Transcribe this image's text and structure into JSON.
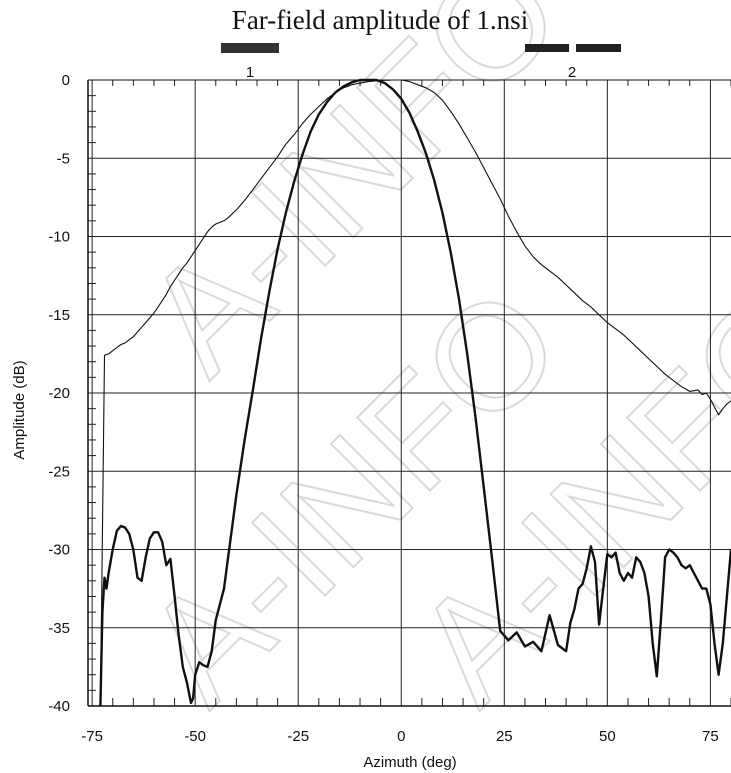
{
  "chart_data": {
    "type": "line",
    "title": "Far-field amplitude of 1.nsi",
    "xlabel": "Azimuth (deg)",
    "ylabel": "Amplitude (dB)",
    "xlim": [
      -76,
      80
    ],
    "ylim": [
      -40,
      0
    ],
    "xticks": [
      -75,
      -50,
      -25,
      0,
      25,
      50,
      75
    ],
    "yticks": [
      0,
      -5,
      -10,
      -15,
      -20,
      -25,
      -30,
      -35,
      -40
    ],
    "xtick_labels": [
      "-75",
      "-50",
      "-25",
      "0",
      "25",
      "50",
      "75"
    ],
    "ytick_labels": [
      "0",
      "-5",
      "-10",
      "-15",
      "-20",
      "-25",
      "-30",
      "-35",
      "-40"
    ],
    "grid": true,
    "legend": {
      "placement": "top",
      "entries": [
        {
          "label": "1",
          "style": "solid thick bar"
        },
        {
          "label": "2",
          "style": "dashed thick bar"
        }
      ]
    },
    "watermark": "A-INFO",
    "series": [
      {
        "id": "1",
        "style": "thick",
        "x": [
          -73,
          -72.5,
          -72,
          -71.5,
          -71,
          -70,
          -69,
          -68,
          -67,
          -66,
          -65,
          -64,
          -63,
          -62,
          -61,
          -60,
          -59,
          -58,
          -57,
          -56,
          -55,
          -54,
          -53,
          -52,
          -51,
          -50.5,
          -50,
          -49,
          -48,
          -47,
          -46,
          -45,
          -44,
          -43,
          -42,
          -41,
          -40,
          -38,
          -36,
          -34,
          -32,
          -30,
          -28,
          -26,
          -24,
          -22,
          -20,
          -18,
          -16,
          -14,
          -12,
          -10,
          -8,
          -6,
          -4,
          -2,
          0,
          2,
          4,
          6,
          8,
          10,
          12,
          14,
          16,
          18,
          20,
          22,
          24,
          26,
          28,
          30,
          32,
          34,
          36,
          38,
          40,
          41,
          42,
          43,
          44,
          45,
          46,
          47,
          48,
          49,
          50,
          51,
          52,
          53,
          54,
          55,
          56,
          57,
          58,
          59,
          60,
          61,
          62,
          63,
          64,
          65,
          66,
          67,
          68,
          69,
          70,
          71,
          72,
          73,
          74,
          75,
          76,
          77,
          78,
          79,
          80
        ],
        "y": [
          -40,
          -34,
          -31.8,
          -32.5,
          -31.5,
          -30,
          -28.8,
          -28.5,
          -28.6,
          -29,
          -30,
          -31.8,
          -32,
          -30.5,
          -29.3,
          -28.9,
          -28.9,
          -29.5,
          -31,
          -30.6,
          -33,
          -35.5,
          -37.5,
          -38.5,
          -39.8,
          -39.5,
          -38,
          -37.2,
          -37.4,
          -37.5,
          -36.5,
          -34.5,
          -33.5,
          -32.5,
          -30.5,
          -28.5,
          -26.5,
          -23,
          -19.8,
          -16.5,
          -13.5,
          -10.8,
          -8.5,
          -6.5,
          -4.8,
          -3.3,
          -2.2,
          -1.4,
          -0.8,
          -0.4,
          -0.15,
          0,
          0,
          0,
          -0.2,
          -0.6,
          -1.2,
          -2.1,
          -3.3,
          -4.7,
          -6.4,
          -8.5,
          -11,
          -14,
          -17.5,
          -21.5,
          -26,
          -30.5,
          -35.2,
          -35.8,
          -35.3,
          -36.2,
          -35.9,
          -36.5,
          -34.2,
          -36.1,
          -36.5,
          -34.7,
          -33.8,
          -32.5,
          -32.2,
          -31.2,
          -29.8,
          -30.8,
          -34.8,
          -32.5,
          -30.3,
          -30.5,
          -30.2,
          -31.5,
          -32,
          -31.5,
          -31.8,
          -30.5,
          -30.8,
          -31.5,
          -33,
          -36,
          -38.1,
          -34.5,
          -30.5,
          -30,
          -30.2,
          -30.5,
          -31,
          -31.2,
          -31,
          -31.5,
          -32,
          -32.5,
          -32.5,
          -33.5,
          -36,
          -38,
          -36,
          -33,
          -30
        ]
      },
      {
        "id": "2",
        "style": "thin",
        "x": [
          -73,
          -72,
          -71,
          -70,
          -69,
          -68,
          -67,
          -66,
          -65,
          -64,
          -63,
          -62,
          -61,
          -60,
          -59,
          -58,
          -57,
          -56,
          -55,
          -54,
          -53,
          -52,
          -51,
          -50,
          -49,
          -48,
          -47,
          -46,
          -45,
          -44,
          -43,
          -42,
          -40,
          -38,
          -36,
          -34,
          -32,
          -30,
          -28,
          -26,
          -24,
          -22,
          -20,
          -18,
          -16,
          -14,
          -12,
          -10,
          -8,
          -6,
          -4,
          -2,
          0,
          2,
          4,
          6,
          8,
          10,
          12,
          14,
          16,
          18,
          20,
          22,
          24,
          26,
          28,
          30,
          32,
          34,
          36,
          38,
          40,
          42,
          44,
          46,
          48,
          50,
          52,
          54,
          56,
          58,
          60,
          62,
          64,
          66,
          68,
          70,
          72,
          73,
          74,
          75,
          76,
          77,
          78,
          79,
          80
        ],
        "y": [
          -40,
          -17.6,
          -17.5,
          -17.3,
          -17.1,
          -16.9,
          -16.8,
          -16.6,
          -16.4,
          -16.1,
          -15.8,
          -15.5,
          -15.2,
          -14.9,
          -14.5,
          -14.1,
          -13.7,
          -13.2,
          -12.8,
          -12.4,
          -12,
          -11.7,
          -11.3,
          -10.9,
          -10.5,
          -10.1,
          -9.7,
          -9.4,
          -9.2,
          -9.1,
          -9,
          -8.8,
          -8.3,
          -7.7,
          -7,
          -6.3,
          -5.6,
          -4.9,
          -4.1,
          -3.5,
          -2.8,
          -2.2,
          -1.7,
          -1.2,
          -0.8,
          -0.5,
          -0.3,
          -0.2,
          -0.1,
          -0.05,
          -0.02,
          0,
          0,
          -0.1,
          -0.3,
          -0.5,
          -0.8,
          -1.3,
          -2,
          -2.8,
          -3.7,
          -4.6,
          -5.6,
          -6.6,
          -7.6,
          -8.7,
          -9.7,
          -10.6,
          -11.3,
          -11.8,
          -12.2,
          -12.6,
          -13.1,
          -13.6,
          -14.1,
          -14.5,
          -15,
          -15.5,
          -15.9,
          -16.3,
          -16.8,
          -17.3,
          -17.8,
          -18.3,
          -18.8,
          -19.2,
          -19.6,
          -19.9,
          -19.8,
          -20.1,
          -20,
          -20.4,
          -20.9,
          -21.4,
          -21,
          -20.7,
          -20.5
        ]
      }
    ]
  }
}
